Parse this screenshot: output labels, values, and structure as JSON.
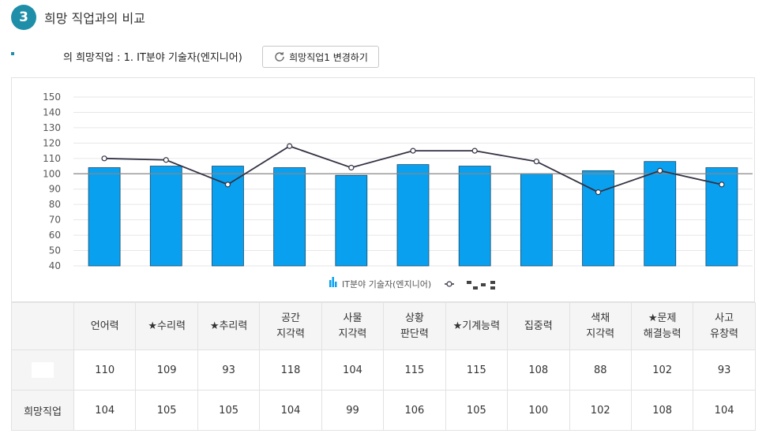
{
  "section": {
    "number": "3",
    "title": "희망 직업과의 비교"
  },
  "job_line": "의 희망직업 : 1. IT분야 기술자(엔지니어)",
  "change_button": "희망직업1 변경하기",
  "chart_data": {
    "type": "bar",
    "categories": [
      "언어력",
      "★수리력",
      "★추리력",
      "공간\n지각력",
      "사물\n지각력",
      "상황\n판단력",
      "★기계능력",
      "집중력",
      "색채\n지각력",
      "★문제\n해결능력",
      "사고\n유창력"
    ],
    "series": [
      {
        "name": "IT분야 기술자(엔지니어)",
        "kind": "bar",
        "color": "#0aa0f0",
        "values": [
          104,
          105,
          105,
          104,
          99,
          106,
          105,
          100,
          102,
          108,
          104
        ]
      },
      {
        "name": "",
        "kind": "line",
        "color": "#333344",
        "values": [
          110,
          109,
          93,
          118,
          104,
          115,
          115,
          108,
          88,
          102,
          93
        ]
      }
    ],
    "ylim": [
      40,
      150
    ],
    "yticks": [
      40,
      50,
      60,
      70,
      80,
      90,
      100,
      110,
      120,
      130,
      140,
      150
    ],
    "baseline": 100,
    "legend": "bottom-center",
    "grid": true
  },
  "table": {
    "columns": [
      "언어력",
      "★수리력",
      "★추리력",
      "공간\n지각력",
      "사물\n지각력",
      "상황\n판단력",
      "★기계능력",
      "집중력",
      "색채\n지각력",
      "★문제\n해결능력",
      "사고\n유창력"
    ],
    "rows": [
      {
        "label": "",
        "values": [
          "110",
          "109",
          "93",
          "118",
          "104",
          "115",
          "115",
          "108",
          "88",
          "102",
          "93"
        ]
      },
      {
        "label": "희망직업",
        "values": [
          "104",
          "105",
          "105",
          "104",
          "99",
          "106",
          "105",
          "100",
          "102",
          "108",
          "104"
        ]
      }
    ]
  }
}
